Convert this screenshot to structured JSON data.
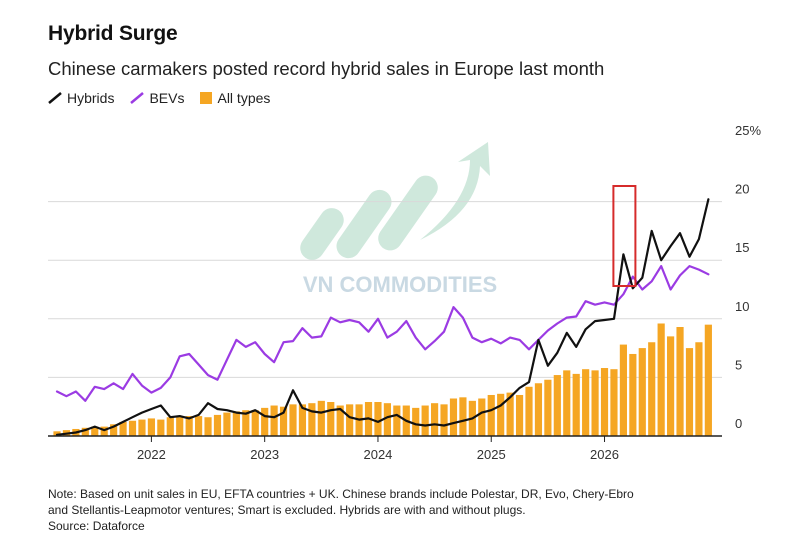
{
  "title": "Hybrid Surge",
  "subtitle": "Chinese carmakers posted record hybrid sales in Europe last month",
  "legend": {
    "hybrids": "Hybrids",
    "bevs": "BEVs",
    "all": "All types"
  },
  "watermark": "VN COMMODITIES",
  "note": {
    "line1": "Note: Based on unit sales in EU, EFTA countries + UK. Chinese brands include Polestar, DR, Evo, Chery-Ebro",
    "line2": "and Stellantis-Leapmotor ventures; Smart is excluded. Hybrids are with and without plugs.",
    "line3": "Source: Dataforce"
  },
  "colors": {
    "hybrids": "#111111",
    "bevs": "#9b3be3",
    "all": "#f5a623",
    "highlight": "#d62b2b",
    "grid": "#d9d9d9",
    "watermark": "#cfe8dc"
  },
  "chart_data": {
    "type": "bar",
    "start": "2021-03",
    "ylim": [
      0,
      25
    ],
    "yticks": [
      {
        "value": 0,
        "label": "0"
      },
      {
        "value": 5,
        "label": "5"
      },
      {
        "value": 10,
        "label": "10"
      },
      {
        "value": 15,
        "label": "15"
      },
      {
        "value": 20,
        "label": "20"
      },
      {
        "value": 25,
        "label": "25%"
      }
    ],
    "xticks": [
      {
        "month": "2022-01",
        "label": "2022"
      },
      {
        "month": "2023-01",
        "label": "2023"
      },
      {
        "month": "2024-01",
        "label": "2024"
      },
      {
        "month": "2025-01",
        "label": "2025"
      },
      {
        "month": "2026-01",
        "label": "2026"
      }
    ],
    "highlight": {
      "month": "2026-03",
      "label": ""
    },
    "series": [
      {
        "name": "All types",
        "type": "bar",
        "values": [
          0.4,
          0.5,
          0.6,
          0.7,
          0.8,
          0.8,
          1.0,
          1.2,
          1.3,
          1.4,
          1.5,
          1.4,
          1.6,
          1.6,
          1.7,
          1.7,
          1.6,
          1.8,
          2.0,
          2.1,
          2.2,
          2.2,
          2.4,
          2.6,
          2.5,
          2.7,
          2.7,
          2.8,
          3.0,
          2.9,
          2.6,
          2.7,
          2.7,
          2.9,
          2.9,
          2.8,
          2.6,
          2.6,
          2.4,
          2.6,
          2.8,
          2.7,
          3.2,
          3.3,
          3.0,
          3.2,
          3.5,
          3.6,
          3.7,
          3.5,
          4.2,
          4.5,
          4.8,
          5.2,
          5.6,
          5.3,
          5.7,
          5.6,
          5.8,
          5.7,
          7.8,
          7.0,
          7.5,
          8.0,
          9.6,
          8.5,
          9.3,
          7.5,
          8.0,
          9.5
        ]
      },
      {
        "name": "BEVs",
        "type": "line",
        "values": [
          3.8,
          3.4,
          3.8,
          3.0,
          4.2,
          4.0,
          4.5,
          4.0,
          5.3,
          4.3,
          3.7,
          4.1,
          5.0,
          6.8,
          7.0,
          6.1,
          5.2,
          4.8,
          6.5,
          8.2,
          7.6,
          8.0,
          7.0,
          6.3,
          8.0,
          8.1,
          9.2,
          8.4,
          8.5,
          10.1,
          9.7,
          9.9,
          9.7,
          8.9,
          10.0,
          8.4,
          8.9,
          9.8,
          8.4,
          7.4,
          8.1,
          8.9,
          11.0,
          10.1,
          8.4,
          8.0,
          8.3,
          7.9,
          8.4,
          8.2,
          7.4,
          8.2,
          9.0,
          9.6,
          10.1,
          10.2,
          11.5,
          11.2,
          11.4,
          11.2,
          12.1,
          13.6,
          12.5,
          13.2,
          14.5,
          12.5,
          13.7,
          14.5,
          14.2,
          13.8
        ]
      },
      {
        "name": "Hybrids",
        "type": "line",
        "values": [
          0.1,
          0.2,
          0.3,
          0.5,
          0.8,
          0.5,
          0.8,
          1.2,
          1.6,
          2.0,
          2.3,
          2.6,
          1.6,
          1.7,
          1.5,
          1.8,
          2.8,
          2.3,
          2.2,
          2.0,
          1.9,
          2.2,
          1.7,
          1.6,
          2.0,
          3.9,
          2.4,
          2.1,
          2.0,
          2.2,
          2.3,
          1.6,
          1.4,
          1.5,
          1.2,
          1.6,
          1.8,
          1.3,
          1.0,
          0.9,
          1.0,
          0.9,
          1.1,
          1.3,
          1.5,
          2.0,
          2.2,
          2.6,
          3.3,
          4.1,
          4.6,
          8.2,
          6.0,
          7.1,
          8.8,
          7.6,
          9.1,
          9.8,
          9.9,
          10.0,
          15.5,
          12.6,
          13.5,
          17.5,
          15.0,
          16.2,
          17.3,
          15.3,
          16.8,
          20.2
        ]
      }
    ]
  }
}
